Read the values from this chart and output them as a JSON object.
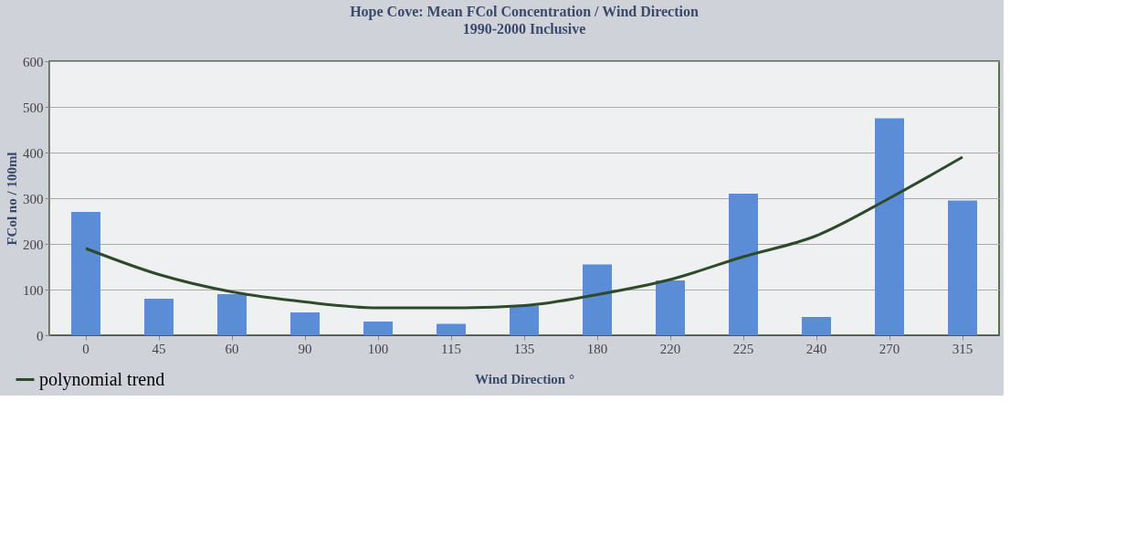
{
  "chart_data": {
    "type": "bar",
    "title": "Hope Cove: Mean FCol Concentration / Wind Direction",
    "subtitle": "1990-2000 Inclusive",
    "xlabel": "Wind Direction °",
    "ylabel": "FCol no / 100ml",
    "categories": [
      "0",
      "45",
      "60",
      "90",
      "100",
      "115",
      "135",
      "180",
      "220",
      "225",
      "240",
      "270",
      "315"
    ],
    "series": [
      {
        "color": "#5b8dd6",
        "values": [
          270,
          80,
          90,
          50,
          30,
          25,
          65,
          155,
          120,
          310,
          40,
          475,
          295
        ]
      },
      {
        "type": "line",
        "name": "polynomial trend",
        "color": "#2e4a2a",
        "values": [
          190,
          133,
          95,
          73,
          60,
          60,
          65,
          89,
          122,
          172,
          218,
          300,
          390
        ]
      }
    ],
    "ylim": [
      0,
      600
    ],
    "yticks": [
      0,
      100,
      200,
      300,
      400,
      500,
      600
    ],
    "grid": "y",
    "legend": "bottom left"
  }
}
